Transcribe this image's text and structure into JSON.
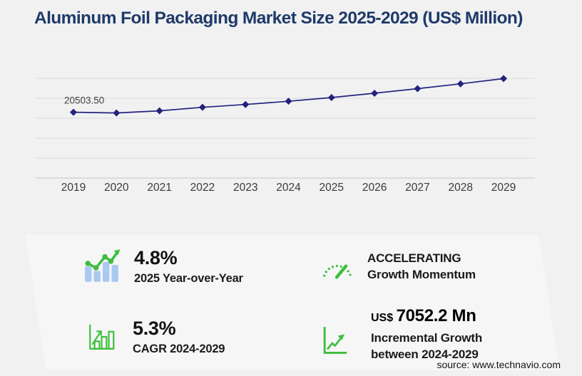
{
  "page": {
    "title": "Aluminum Foil Packaging Market Size 2025-2029 (US$ Million)",
    "source": "source: www.technavio.com"
  },
  "colors": {
    "title_navy": "#1f3a68",
    "line_navy": "#23227d",
    "green": "#3dbe3d",
    "bar_blue": "#a9c9f1",
    "background": "#f1f1f2",
    "panel": "#f6f6f7",
    "gridline": "#dcdcde",
    "axis": "#c7c7ca"
  },
  "chart_data": {
    "type": "line",
    "title": "Aluminum Foil Packaging Market Size 2025-2029 (US$ Million)",
    "x": [
      2019,
      2020,
      2021,
      2022,
      2023,
      2024,
      2025,
      2026,
      2027,
      2028,
      2029
    ],
    "series": [
      {
        "name": "Market size (US$ Million)",
        "values": [
          20503.5,
          20290,
          20950,
          22050,
          22930,
          23940,
          25090,
          26430,
          27860,
          29370,
          30992
        ]
      }
    ],
    "data_labels": [
      {
        "x": 2019,
        "label": "20503.50"
      }
    ],
    "ylim": [
      0,
      35520
    ],
    "xlabel": "",
    "ylabel": "",
    "grid": "horizontal",
    "legend": "none",
    "marker": "diamond"
  },
  "stats": [
    {
      "id": "yoy",
      "value": "4.8%",
      "label": "2025 Year-over-Year",
      "icon": "bar-chart-trend-icon"
    },
    {
      "id": "momentum",
      "line1": "ACCELERATING",
      "line2": "Growth Momentum",
      "icon": "speedometer-icon"
    },
    {
      "id": "cagr",
      "value": "5.3%",
      "label": "CAGR 2024-2029",
      "icon": "growth-bars-icon"
    },
    {
      "id": "incremental",
      "prefix": "US$",
      "value": "7052.2 Mn",
      "line1": "Incremental Growth",
      "line2": "between 2024-2029",
      "icon": "line-growth-icon"
    }
  ]
}
